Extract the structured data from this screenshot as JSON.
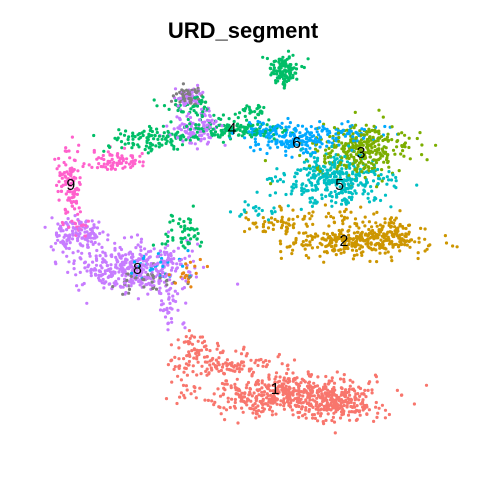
{
  "chart_data": {
    "type": "scatter",
    "title": "URD_segment",
    "xlabel": "",
    "ylabel": "",
    "xlim": [
      0,
      100
    ],
    "ylim": [
      0,
      100
    ],
    "grid": false,
    "axes_visible": false,
    "legend": "none",
    "point_radius_data": 0.35,
    "clusters": [
      {
        "label": "1",
        "color": "#F8766D",
        "label_pos": [
          57.0,
          18.0
        ],
        "regions": [
          {
            "points": 520,
            "center": [
              60.0,
              16.5
            ],
            "spread": [
              10.0,
              2.8
            ]
          },
          {
            "points": 160,
            "center": [
              72.0,
              14.0
            ],
            "spread": [
              5.0,
              2.2
            ]
          },
          {
            "points": 130,
            "center": [
              44.5,
              24.5
            ],
            "spread": [
              6.0,
              1.8
            ]
          },
          {
            "points": 25,
            "center": [
              37.5,
              29.5
            ],
            "spread": [
              2.0,
              1.2
            ]
          }
        ]
      },
      {
        "label": "2",
        "color": "#CD9600",
        "label_pos": [
          73.0,
          55.0
        ],
        "regions": [
          {
            "points": 280,
            "center": [
              76.0,
              54.5
            ],
            "spread": [
              8.0,
              1.8
            ]
          },
          {
            "points": 90,
            "center": [
              83.5,
              57.0
            ],
            "spread": [
              2.5,
              2.2
            ]
          },
          {
            "points": 60,
            "center": [
              59.0,
              59.5
            ],
            "spread": [
              4.5,
              1.5
            ]
          },
          {
            "points": 25,
            "center": [
              73.0,
              60.5
            ],
            "spread": [
              3.0,
              2.0
            ]
          }
        ]
      },
      {
        "label": "3",
        "color": "#7CAE00",
        "label_pos": [
          77.0,
          77.0
        ],
        "regions": [
          {
            "points": 320,
            "center": [
              77.5,
              77.5
            ],
            "spread": [
              5.5,
              3.0
            ]
          }
        ]
      },
      {
        "label": "4",
        "color": "#00BE67",
        "label_pos": [
          47.0,
          83.0
        ],
        "regions": [
          {
            "points": 110,
            "center": [
              59.0,
              97.5
            ],
            "spread": [
              1.8,
              2.0
            ]
          },
          {
            "points": 130,
            "center": [
              47.0,
              82.5
            ],
            "spread": [
              6.0,
              1.4
            ]
          },
          {
            "points": 110,
            "center": [
              28.5,
              80.0
            ],
            "spread": [
              6.0,
              1.6
            ]
          },
          {
            "points": 50,
            "center": [
              37.0,
              88.0
            ],
            "spread": [
              3.0,
              1.5
            ]
          },
          {
            "points": 50,
            "center": [
              35.0,
              57.0
            ],
            "spread": [
              3.0,
              2.5
            ]
          },
          {
            "points": 30,
            "center": [
              52.0,
              87.0
            ],
            "spread": [
              2.5,
              1.0
            ]
          }
        ]
      },
      {
        "label": "5",
        "color": "#00BFC4",
        "label_pos": [
          72.0,
          69.0
        ],
        "regions": [
          {
            "points": 340,
            "center": [
              71.0,
              70.0
            ],
            "spread": [
              6.0,
              3.0
            ]
          },
          {
            "points": 20,
            "center": [
              52.0,
              62.0
            ],
            "spread": [
              3.5,
              1.5
            ]
          }
        ]
      },
      {
        "label": "6",
        "color": "#00A9FF",
        "label_pos": [
          62.0,
          79.5
        ],
        "regions": [
          {
            "points": 170,
            "center": [
              63.0,
              80.5
            ],
            "spread": [
              5.0,
              2.0
            ]
          },
          {
            "points": 50,
            "center": [
              53.0,
              82.5
            ],
            "spread": [
              3.0,
              1.0
            ]
          },
          {
            "points": 40,
            "center": [
              75.0,
              82.0
            ],
            "spread": [
              4.0,
              1.2
            ]
          }
        ]
      },
      {
        "label": "8",
        "color": "#C77CFF",
        "label_pos": [
          25.0,
          48.0
        ],
        "regions": [
          {
            "points": 380,
            "center": [
              24.0,
              48.0
            ],
            "spread": [
              6.5,
              3.0
            ]
          },
          {
            "points": 130,
            "center": [
              11.0,
              56.5
            ],
            "spread": [
              3.0,
              2.0
            ]
          },
          {
            "points": 100,
            "center": [
              39.0,
              83.0
            ],
            "spread": [
              3.0,
              2.0
            ]
          },
          {
            "points": 50,
            "center": [
              37.0,
              90.5
            ],
            "spread": [
              1.8,
              1.2
            ]
          },
          {
            "points": 40,
            "center": [
              33.0,
              39.0
            ],
            "spread": [
              2.0,
              3.0
            ]
          }
        ]
      },
      {
        "label": "9",
        "color": "#FF61CC",
        "label_pos": [
          9.5,
          69.0
        ],
        "regions": [
          {
            "points": 110,
            "center": [
              9.5,
              69.0
            ],
            "spread": [
              1.5,
              4.5
            ]
          },
          {
            "points": 70,
            "center": [
              19.5,
              75.0
            ],
            "spread": [
              3.0,
              1.3
            ]
          },
          {
            "points": 15,
            "center": [
              12.0,
              58.0
            ],
            "spread": [
              1.5,
              1.0
            ]
          }
        ]
      }
    ],
    "extra_groups": [
      {
        "color": "#7F7F7F",
        "regions": [
          {
            "points": 60,
            "center": [
              37.0,
              91.0
            ],
            "spread": [
              1.8,
              1.1
            ]
          },
          {
            "points": 40,
            "center": [
              26.5,
              45.5
            ],
            "spread": [
              4.0,
              1.5
            ]
          }
        ]
      },
      {
        "color": "#00B0F6",
        "regions": [
          {
            "points": 30,
            "center": [
              30.0,
              49.0
            ],
            "spread": [
              3.0,
              2.0
            ]
          }
        ]
      },
      {
        "color": "#E68613",
        "regions": [
          {
            "points": 20,
            "center": [
              37.0,
              47.5
            ],
            "spread": [
              2.0,
              1.8
            ]
          }
        ]
      }
    ]
  }
}
